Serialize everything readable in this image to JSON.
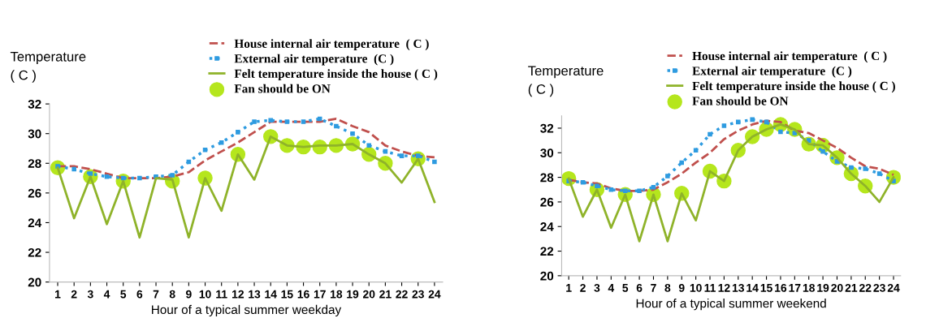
{
  "chart_data": [
    {
      "type": "line",
      "xlabel": "Hour of a typical summer weekday",
      "ylabel": "Temperature\n( C )",
      "categories": [
        "1",
        "2",
        "3",
        "4",
        "5",
        "6",
        "7",
        "8",
        "9",
        "10",
        "11",
        "12",
        "13",
        "14",
        "15",
        "16",
        "17",
        "18",
        "19",
        "20",
        "21",
        "22",
        "23",
        "24"
      ],
      "ylim": [
        20,
        32
      ],
      "yticks": [
        20,
        22,
        24,
        26,
        28,
        30,
        32
      ],
      "grid": false,
      "legend": "top right",
      "series": [
        {
          "name": "House internal air temperature  ( C )",
          "color": "#c0504d",
          "line_style": "dashed",
          "marker": "none",
          "values": [
            27.8,
            27.8,
            27.6,
            27.3,
            27.0,
            27.0,
            27.0,
            27.1,
            27.4,
            28.2,
            28.8,
            29.4,
            30.1,
            30.8,
            30.8,
            30.8,
            30.8,
            31.0,
            30.5,
            30.1,
            29.2,
            28.8,
            28.5,
            28.4
          ]
        },
        {
          "name": "External air temperature  (C )",
          "color": "#2e9be0",
          "line_style": "dotted",
          "marker": "square",
          "values": [
            27.8,
            27.6,
            27.3,
            27.1,
            27.0,
            27.0,
            27.1,
            27.2,
            28.1,
            28.9,
            29.4,
            30.1,
            30.8,
            30.9,
            30.8,
            30.8,
            31.0,
            30.5,
            30.0,
            29.2,
            28.8,
            28.5,
            28.5,
            28.1
          ]
        },
        {
          "name": "Felt temperature inside the house ( C )",
          "color": "#8fb32a",
          "line_style": "solid",
          "marker": "none",
          "values": [
            27.7,
            24.3,
            27.1,
            23.9,
            26.8,
            23.0,
            27.0,
            26.9,
            23.0,
            27.0,
            24.8,
            28.6,
            26.9,
            29.8,
            29.2,
            29.1,
            29.2,
            29.2,
            29.3,
            28.6,
            28.0,
            26.7,
            28.3,
            25.4
          ]
        },
        {
          "name": "Fan should be ON",
          "type": "scatter",
          "color": "#b5e61d",
          "marker": "circle",
          "x": [
            "1",
            "3",
            "5",
            "8",
            "10",
            "12",
            "14",
            "15",
            "16",
            "17",
            "18",
            "19",
            "20",
            "21",
            "23"
          ],
          "values": [
            27.7,
            27.1,
            26.8,
            26.8,
            27.0,
            28.6,
            29.8,
            29.2,
            29.1,
            29.1,
            29.2,
            29.3,
            28.6,
            28.0,
            28.3
          ]
        }
      ]
    },
    {
      "type": "line",
      "xlabel": "Hour of a typical summer weekend",
      "ylabel": "Temperature\n( C )",
      "categories": [
        "1",
        "2",
        "3",
        "4",
        "5",
        "6",
        "7",
        "8",
        "9",
        "10",
        "11",
        "12",
        "13",
        "14",
        "15",
        "16",
        "17",
        "18",
        "19",
        "20",
        "21",
        "22",
        "23",
        "24"
      ],
      "ylim": [
        20,
        33
      ],
      "yticks": [
        20,
        22,
        24,
        26,
        28,
        30,
        32
      ],
      "grid": false,
      "legend": "top right",
      "series": [
        {
          "name": "House internal air temperature  ( C )",
          "color": "#c0504d",
          "line_style": "dashed",
          "marker": "none",
          "values": [
            27.8,
            27.6,
            27.5,
            27.1,
            26.9,
            26.9,
            27.0,
            27.6,
            28.3,
            29.2,
            30.0,
            31.1,
            31.8,
            32.3,
            32.6,
            32.5,
            31.8,
            31.6,
            31.0,
            30.4,
            29.6,
            28.9,
            28.7,
            28.2
          ]
        },
        {
          "name": "External air temperature  (C )",
          "color": "#2e9be0",
          "line_style": "dotted",
          "marker": "square",
          "values": [
            27.7,
            27.6,
            27.3,
            27.0,
            26.9,
            26.9,
            27.2,
            28.1,
            29.2,
            30.2,
            31.5,
            32.2,
            32.5,
            32.7,
            32.5,
            31.7,
            31.6,
            31.0,
            30.1,
            29.3,
            28.8,
            28.7,
            28.3,
            27.7
          ]
        },
        {
          "name": "Felt temperature inside the house ( C )",
          "color": "#8fb32a",
          "line_style": "solid",
          "marker": "none",
          "values": [
            27.9,
            24.8,
            27.0,
            23.9,
            26.6,
            22.8,
            26.6,
            22.8,
            26.7,
            24.5,
            28.5,
            27.7,
            30.2,
            31.3,
            31.9,
            32.3,
            31.9,
            30.7,
            30.6,
            29.6,
            28.3,
            27.3,
            26.0,
            28.0
          ]
        },
        {
          "name": "Fan should be ON",
          "type": "scatter",
          "color": "#b5e61d",
          "marker": "circle",
          "x": [
            "1",
            "3",
            "5",
            "7",
            "9",
            "11",
            "12",
            "13",
            "14",
            "15",
            "16",
            "17",
            "18",
            "19",
            "20",
            "21",
            "22",
            "24"
          ],
          "values": [
            27.9,
            27.0,
            26.6,
            26.6,
            26.7,
            28.5,
            27.7,
            30.2,
            31.3,
            31.9,
            32.3,
            31.9,
            30.7,
            30.6,
            29.6,
            28.3,
            27.3,
            28.0
          ]
        }
      ]
    }
  ]
}
